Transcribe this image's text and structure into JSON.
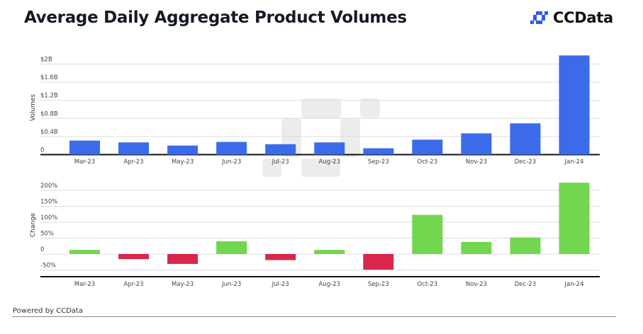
{
  "header": {
    "title": "Average Daily Aggregate Product Volumes",
    "logo_text": "CCData",
    "logo_icon": "ccdata-logo-icon"
  },
  "footer": {
    "text": "Powered by CCData"
  },
  "colors": {
    "volume_bar": "#3B6AEA",
    "positive_change": "#72D64E",
    "negative_change": "#D9264A",
    "gridline": "#dcdcdc",
    "axis": "#111111",
    "watermark": "#ececec"
  },
  "chart_data": [
    {
      "type": "bar",
      "title": "Volumes",
      "xlabel": "",
      "ylabel": "Volumes",
      "categories": [
        "Mar-23",
        "Apr-23",
        "May-23",
        "Jun-23",
        "Jul-23",
        "Aug-23",
        "Sep-23",
        "Oct-23",
        "Nov-23",
        "Dec-23",
        "Jan-24"
      ],
      "values": [
        0.31,
        0.27,
        0.2,
        0.28,
        0.23,
        0.27,
        0.14,
        0.33,
        0.47,
        0.69,
        2.19
      ],
      "unit": "USD billions",
      "ylim": [
        0,
        2.2
      ],
      "yticks": [
        0,
        0.4,
        0.8,
        1.2,
        1.6,
        2.0
      ],
      "ytick_labels": [
        "0",
        "$0.4B",
        "$0.8B",
        "$1.2B",
        "$1.6B",
        "$2B"
      ],
      "grid": true,
      "legend": "none"
    },
    {
      "type": "bar",
      "title": "Change",
      "xlabel": "",
      "ylabel": "Change",
      "categories": [
        "Mar-23",
        "Apr-23",
        "May-23",
        "Jun-23",
        "Jul-23",
        "Aug-23",
        "Sep-23",
        "Oct-23",
        "Nov-23",
        "Dec-23",
        "Jan-24"
      ],
      "values": [
        13,
        -16,
        -31,
        40,
        -19,
        13,
        -49,
        123,
        38,
        52,
        224
      ],
      "unit": "percent",
      "ylim": [
        -70,
        230
      ],
      "yticks": [
        -50,
        0,
        50,
        100,
        150,
        200
      ],
      "ytick_labels": [
        "-50%",
        "0",
        "50%",
        "100%",
        "150%",
        "200%"
      ],
      "grid": true,
      "legend": "none"
    }
  ]
}
